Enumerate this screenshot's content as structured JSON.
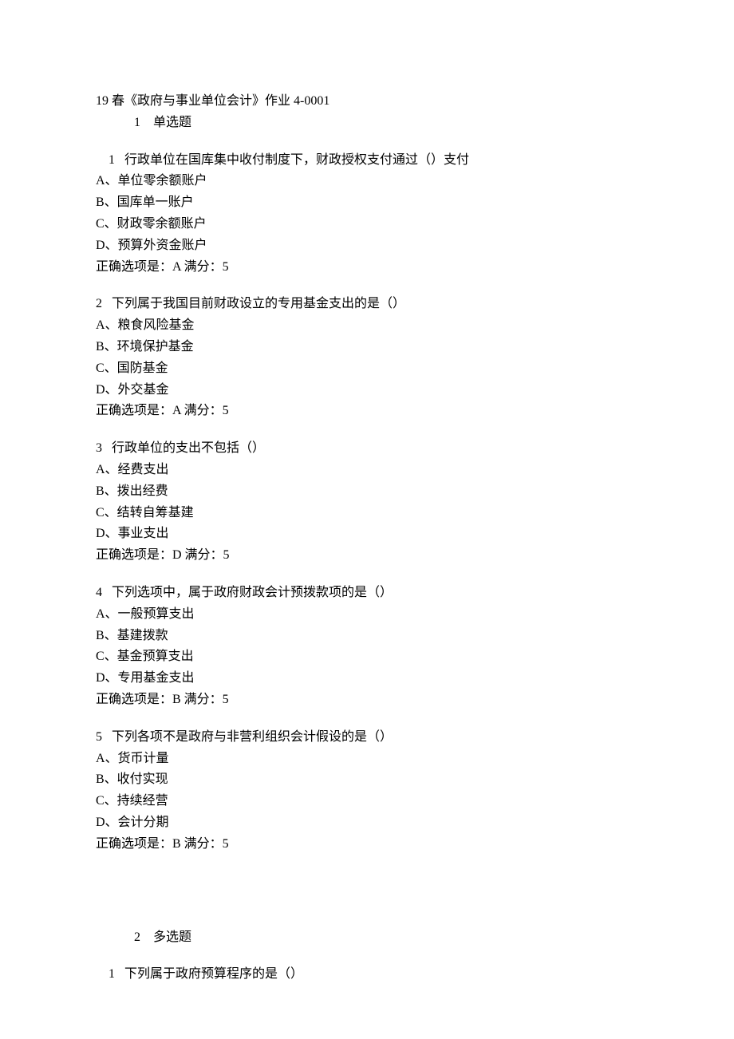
{
  "doc": {
    "title": "19 春《政府与事业单位会计》作业 4-0001",
    "section1": {
      "num": "1",
      "label": "单选题"
    },
    "section2": {
      "num": "2",
      "label": "多选题"
    },
    "questions_s1": [
      {
        "num": "1",
        "text": "行政单位在国库集中收付制度下，财政授权支付通过（）支付",
        "opts": {
          "A": "A、单位零余额账户",
          "B": "B、国库单一账户",
          "C": "C、财政零余额账户",
          "D": "D、预算外资金账户"
        },
        "answer": "正确选项是：A  满分：5"
      },
      {
        "num": "2",
        "text": "下列属于我国目前财政设立的专用基金支出的是（）",
        "opts": {
          "A": "A、粮食风险基金",
          "B": "B、环境保护基金",
          "C": "C、国防基金",
          "D": "D、外交基金"
        },
        "answer": "正确选项是：A  满分：5"
      },
      {
        "num": "3",
        "text": "行政单位的支出不包括（）",
        "opts": {
          "A": "A、经费支出",
          "B": "B、拨出经费",
          "C": "C、结转自筹基建",
          "D": "D、事业支出"
        },
        "answer": "正确选项是：D  满分：5"
      },
      {
        "num": "4",
        "text": "下列选项中，属于政府财政会计预拨款项的是（）",
        "opts": {
          "A": "A、一般预算支出",
          "B": "B、基建拨款",
          "C": "C、基金预算支出",
          "D": "D、专用基金支出"
        },
        "answer": "正确选项是：B  满分：5"
      },
      {
        "num": "5",
        "text": "下列各项不是政府与非营利组织会计假设的是（）",
        "opts": {
          "A": "A、货币计量",
          "B": "B、收付实现",
          "C": "C、持续经营",
          "D": "D、会计分期"
        },
        "answer": "正确选项是：B  满分：5"
      }
    ],
    "questions_s2": [
      {
        "num": "1",
        "text": "下列属于政府预算程序的是（）"
      }
    ]
  }
}
